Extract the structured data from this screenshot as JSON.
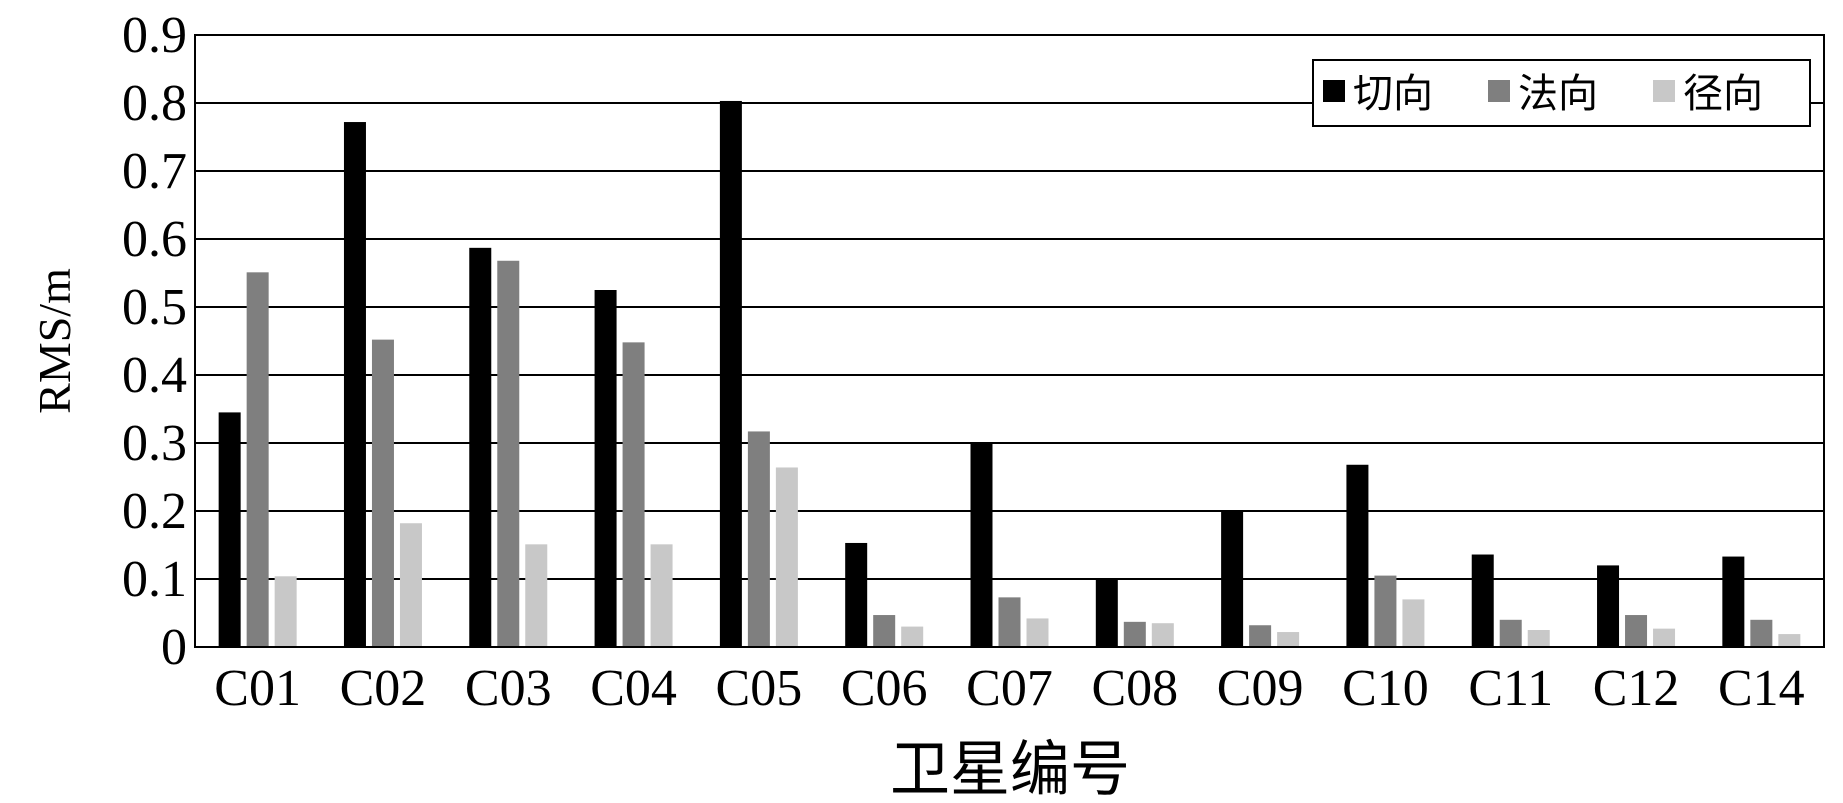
{
  "chart_data": {
    "type": "bar",
    "categories": [
      "C01",
      "C02",
      "C03",
      "C04",
      "C05",
      "C06",
      "C07",
      "C08",
      "C09",
      "C10",
      "C11",
      "C12",
      "C14"
    ],
    "series": [
      {
        "name": "切向",
        "color": "#000000",
        "values": [
          0.345,
          0.772,
          0.587,
          0.525,
          0.803,
          0.153,
          0.3,
          0.101,
          0.2,
          0.268,
          0.136,
          0.12,
          0.133
        ]
      },
      {
        "name": "法向",
        "color": "#7f7f7f",
        "values": [
          0.551,
          0.452,
          0.568,
          0.448,
          0.317,
          0.047,
          0.073,
          0.037,
          0.032,
          0.105,
          0.04,
          0.047,
          0.04
        ]
      },
      {
        "name": "径向",
        "color": "#c8c8c8",
        "values": [
          0.104,
          0.182,
          0.151,
          0.151,
          0.264,
          0.03,
          0.042,
          0.035,
          0.022,
          0.07,
          0.025,
          0.027,
          0.019
        ]
      }
    ],
    "xlabel": "卫星编号",
    "ylabel": "RMS/m",
    "ylim": [
      0,
      0.9
    ],
    "yticks": [
      "0",
      "0.1",
      "0.2",
      "0.3",
      "0.4",
      "0.5",
      "0.6",
      "0.7",
      "0.8",
      "0.9"
    ],
    "grid": "horizontal",
    "legend_position": "top-right"
  }
}
